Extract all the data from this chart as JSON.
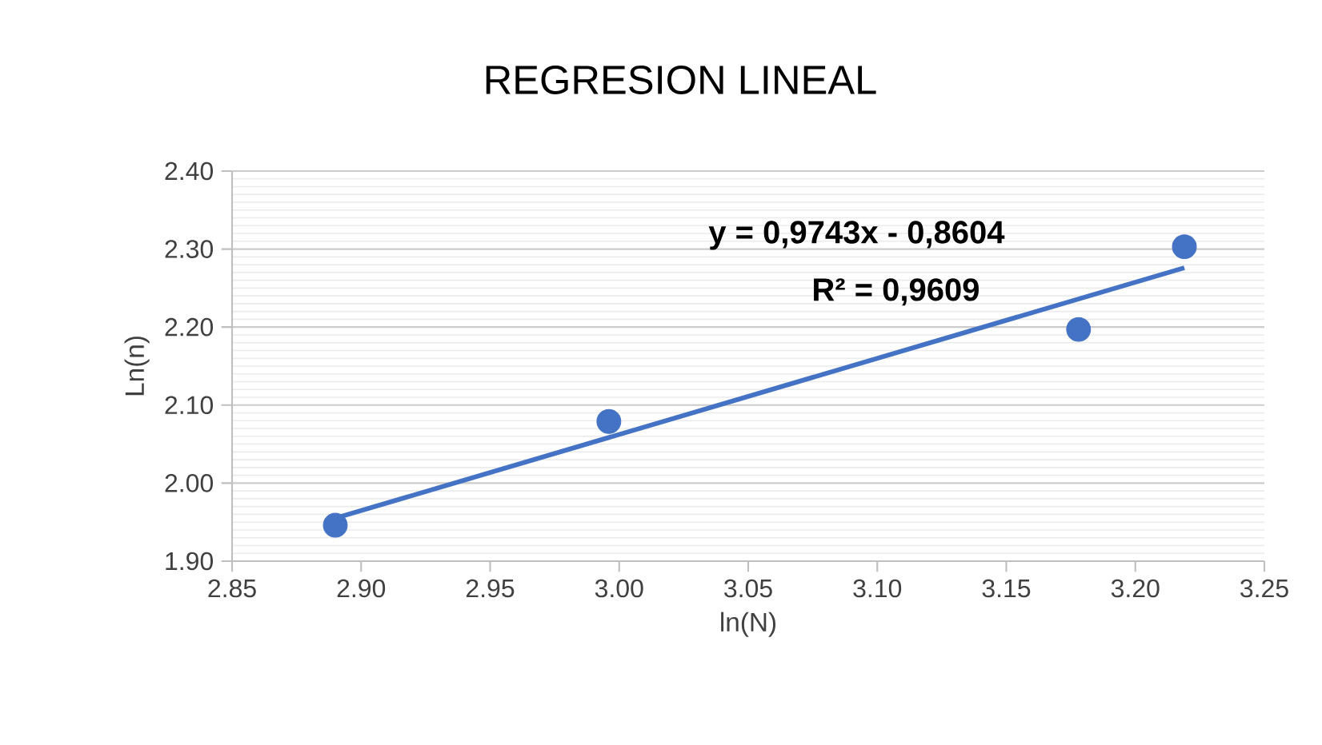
{
  "chart_data": {
    "type": "scatter",
    "title": "REGRESION LINEAL",
    "xlabel": "ln(N)",
    "ylabel": "Ln(n)",
    "annotations": [
      "y = 0,9743x - 0,8604",
      "R² = 0,9609"
    ],
    "series": [
      {
        "color": "#4472c4",
        "marker": "circle",
        "x": [
          2.89,
          2.996,
          3.178,
          3.219
        ],
        "values": [
          1.946,
          2.079,
          2.197,
          2.303
        ]
      },
      {
        "type": "line",
        "color": "#4472c4",
        "marker": "none",
        "line_style": "solid",
        "x": [
          2.89,
          3.219
        ],
        "values": [
          1.955,
          2.276
        ]
      }
    ],
    "xlim": [
      2.85,
      3.25
    ],
    "ylim": [
      1.9,
      2.4
    ],
    "xticks": [
      {
        "value": 2.85,
        "label": "2.85"
      },
      {
        "value": 2.9,
        "label": "2.90"
      },
      {
        "value": 2.95,
        "label": "2.95"
      },
      {
        "value": 3.0,
        "label": "3.00"
      },
      {
        "value": 3.05,
        "label": "3.05"
      },
      {
        "value": 3.1,
        "label": "3.10"
      },
      {
        "value": 3.15,
        "label": "3.15"
      },
      {
        "value": 3.2,
        "label": "3.20"
      },
      {
        "value": 3.25,
        "label": "3.25"
      }
    ],
    "yticks": [
      {
        "value": 1.9,
        "label": "1.90"
      },
      {
        "value": 2.0,
        "label": "2.00"
      },
      {
        "value": 2.1,
        "label": "2.10"
      },
      {
        "value": 2.2,
        "label": "2.20"
      },
      {
        "value": 2.3,
        "label": "2.30"
      },
      {
        "value": 2.4,
        "label": "2.40"
      }
    ],
    "grid": "y"
  }
}
